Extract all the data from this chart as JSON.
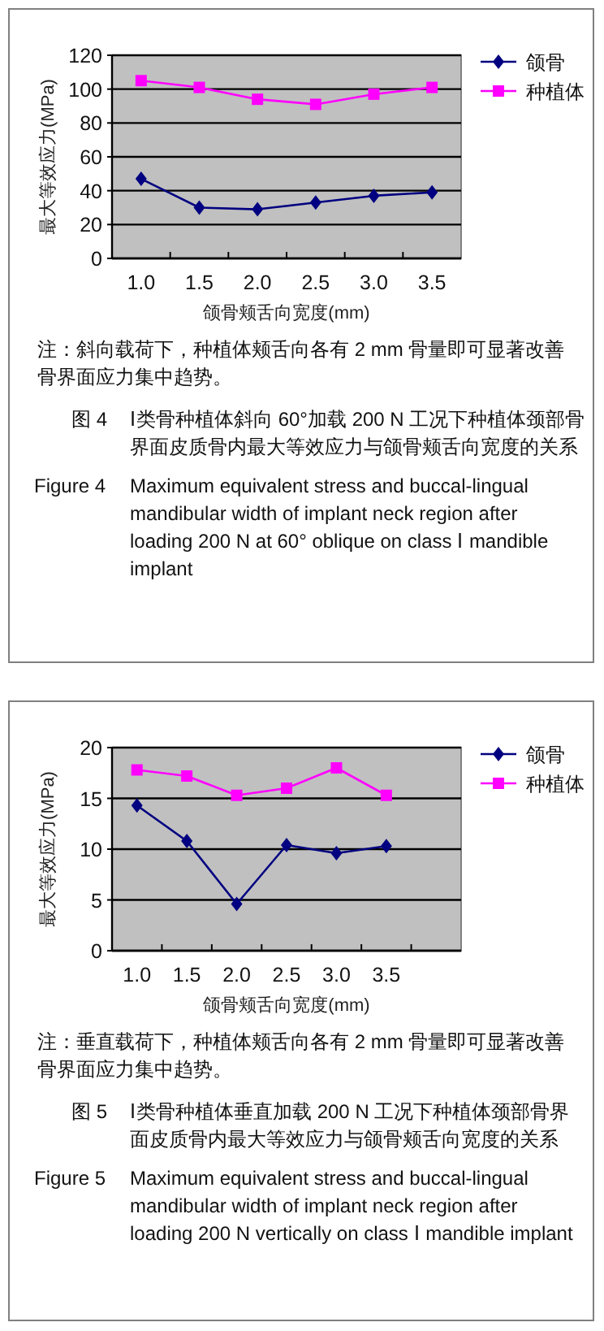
{
  "chart_data": [
    {
      "type": "line",
      "ylabel": "最大等效应力(MPa)",
      "xlabel": "颌骨颊舌向宽度(mm)",
      "categories": [
        "1.0",
        "1.5",
        "2.0",
        "2.5",
        "3.0",
        "3.5"
      ],
      "ylim": [
        0,
        120
      ],
      "yticks": [
        0,
        20,
        40,
        60,
        80,
        100,
        120
      ],
      "grid": "y",
      "legend": "right",
      "series": [
        {
          "name": "颌骨",
          "color": "#000080",
          "marker": "diamond",
          "values": [
            47,
            30,
            29,
            33,
            37,
            39
          ]
        },
        {
          "name": "种植体",
          "color": "#ff00ff",
          "marker": "square",
          "values": [
            105,
            101,
            94,
            91,
            97,
            101
          ]
        }
      ],
      "annotations": [
        "注：斜向载荷下，种植体颊舌向各有 2 mm 骨量即可显著改善骨界面应力集中趋势。",
        "图 4",
        "Ⅰ类骨种植体斜向 60°加载 200 N 工况下种植体颈部骨界面皮质骨内最大等效应力与颌骨颊舌向宽度的关系",
        "Figure 4",
        "Maximum equivalent stress and buccal-lingual mandibular width of implant neck region after loading 200 N at 60° oblique on class Ⅰ mandible implant"
      ]
    },
    {
      "type": "line",
      "ylabel": "最大等效应力(MPa)",
      "xlabel": "颌骨颊舌向宽度(mm)",
      "categories": [
        "1.0",
        "1.5",
        "2.0",
        "2.5",
        "3.0",
        "3.5",
        null
      ],
      "ylim": [
        0,
        20
      ],
      "yticks": [
        0,
        5,
        10,
        15,
        20
      ],
      "grid": "y",
      "legend": "right",
      "series": [
        {
          "name": "颌骨",
          "color": "#000080",
          "marker": "diamond",
          "values": [
            14.3,
            10.8,
            4.6,
            10.4,
            9.6,
            10.3,
            null
          ]
        },
        {
          "name": "种植体",
          "color": "#ff00ff",
          "marker": "square",
          "values": [
            17.8,
            17.2,
            15.3,
            16.0,
            18.0,
            15.3,
            null
          ]
        }
      ],
      "annotations": [
        "注：垂直载荷下，种植体颊舌向各有 2 mm 骨量即可显著改善骨界面应力集中趋势。",
        "图 5",
        "Ⅰ类骨种植体垂直加载 200 N 工况下种植体颈部骨界面皮质骨内最大等效应力与颌骨颊舌向宽度的关系",
        "Figure 5",
        "Maximum equivalent stress and buccal-lingual mandibular width of implant neck region after loading 200 N vertically on class Ⅰ mandible implant"
      ]
    }
  ]
}
